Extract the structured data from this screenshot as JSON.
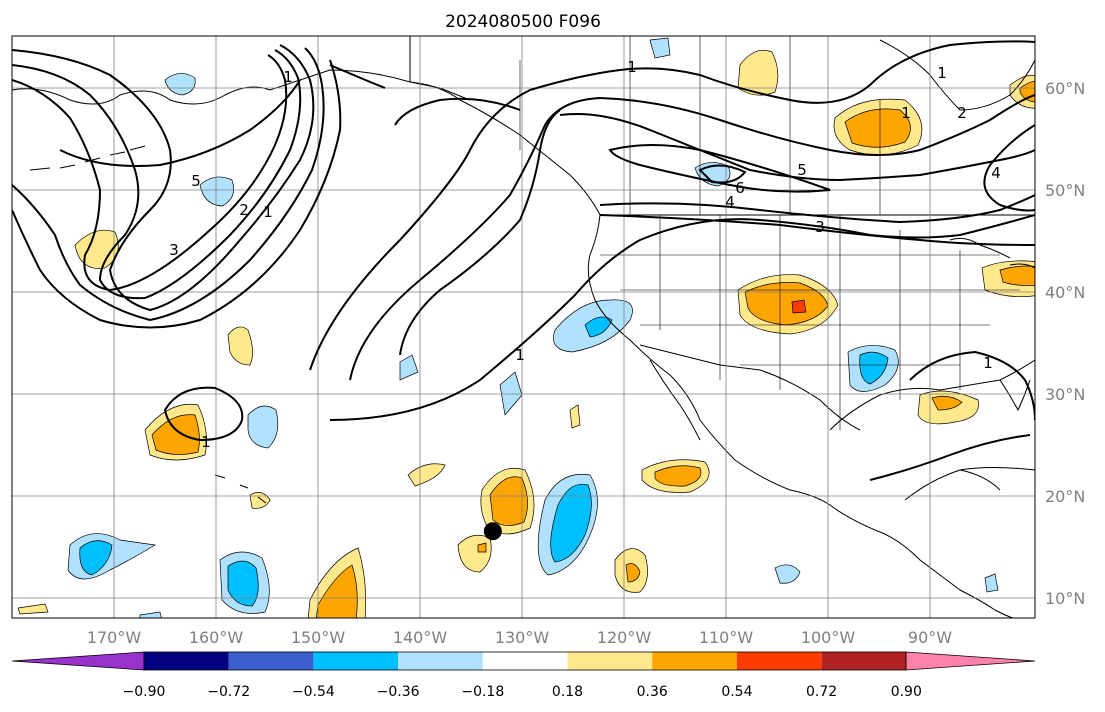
{
  "title": "2024080500 F096",
  "map": {
    "lon_ticks": [
      "170°W",
      "160°W",
      "150°W",
      "140°W",
      "130°W",
      "120°W",
      "110°W",
      "100°W",
      "90°W"
    ],
    "lat_ticks": [
      "10°N",
      "20°N",
      "30°N",
      "40°N",
      "50°N",
      "60°N"
    ],
    "extent": {
      "lon_min": -180,
      "lon_max": -80,
      "lat_min": 8,
      "lat_max": 65
    },
    "contour_labels": [
      "1",
      "5",
      "2",
      "1",
      "3",
      "1",
      "1",
      "1",
      "1",
      "4",
      "5",
      "6",
      "3",
      "2",
      "4",
      "1",
      "1"
    ],
    "marker": {
      "name": "point-marker",
      "lon": -133,
      "lat": 16.5,
      "color": "#000000"
    }
  },
  "colorbar": {
    "tick_labels": [
      "−0.90",
      "−0.72",
      "−0.54",
      "−0.36",
      "−0.18",
      "0.18",
      "0.36",
      "0.54",
      "0.72",
      "0.90"
    ],
    "bins": [
      {
        "color": "#9932CC"
      },
      {
        "color": "#000080"
      },
      {
        "color": "#3A5FCD"
      },
      {
        "color": "#00BFFF"
      },
      {
        "color": "#B0E2FF"
      },
      {
        "color": "#FFFFFF"
      },
      {
        "color": "#FFE98C"
      },
      {
        "color": "#FFA500"
      },
      {
        "color": "#FF3C00"
      },
      {
        "color": "#B22222"
      },
      {
        "color": "#FF82AB"
      }
    ]
  }
}
